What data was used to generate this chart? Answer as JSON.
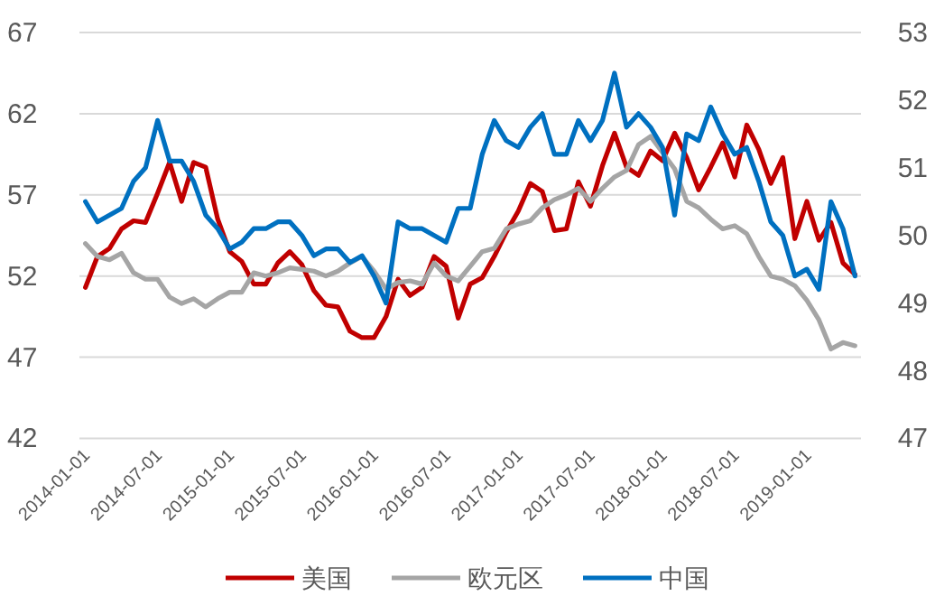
{
  "chart_data": {
    "type": "line",
    "categories": [
      "2014-01-01",
      null,
      null,
      null,
      null,
      null,
      "2014-07-01",
      null,
      null,
      null,
      null,
      null,
      "2015-01-01",
      null,
      null,
      null,
      null,
      null,
      "2015-07-01",
      null,
      null,
      null,
      null,
      null,
      "2016-01-01",
      null,
      null,
      null,
      null,
      null,
      "2016-07-01",
      null,
      null,
      null,
      null,
      null,
      "2017-01-01",
      null,
      null,
      null,
      null,
      null,
      "2017-07-01",
      null,
      null,
      null,
      null,
      null,
      "2018-01-01",
      null,
      null,
      null,
      null,
      null,
      "2018-07-01",
      null,
      null,
      null,
      null,
      null,
      "2019-01-01",
      null,
      null,
      null,
      null
    ],
    "series": [
      {
        "name": "美国",
        "color": "#c00000",
        "values": [
          51.3,
          53.2,
          53.7,
          54.9,
          55.4,
          55.3,
          57.1,
          59.0,
          56.6,
          59.0,
          58.7,
          55.5,
          53.5,
          52.9,
          51.5,
          51.5,
          52.8,
          53.5,
          52.7,
          51.1,
          50.2,
          50.1,
          48.6,
          48.2,
          48.2,
          49.5,
          51.8,
          50.8,
          51.3,
          53.2,
          52.6,
          49.4,
          51.5,
          51.9,
          53.2,
          54.7,
          56.0,
          57.7,
          57.2,
          54.8,
          54.9,
          57.8,
          56.3,
          58.8,
          60.8,
          58.7,
          58.2,
          59.7,
          59.1,
          60.8,
          59.3,
          57.3,
          58.7,
          60.2,
          58.1,
          61.3,
          59.8,
          57.7,
          59.3,
          54.3,
          56.6,
          54.2,
          55.3,
          52.8,
          52.1
        ]
      },
      {
        "name": "欧元区",
        "color": "#a5a5a5",
        "values": [
          54.0,
          53.2,
          53.0,
          53.4,
          52.2,
          51.8,
          51.8,
          50.7,
          50.3,
          50.6,
          50.1,
          50.6,
          51.0,
          51.0,
          52.2,
          52.0,
          52.2,
          52.5,
          52.4,
          52.3,
          52.0,
          52.3,
          52.8,
          53.2,
          52.3,
          51.2,
          51.6,
          51.7,
          51.5,
          52.8,
          52.0,
          51.7,
          52.6,
          53.5,
          53.7,
          54.9,
          55.2,
          55.4,
          56.2,
          56.7,
          57.0,
          57.4,
          56.6,
          57.4,
          58.1,
          58.5,
          60.1,
          60.6,
          59.6,
          58.6,
          56.6,
          56.2,
          55.5,
          54.9,
          55.1,
          54.6,
          53.2,
          52.0,
          51.8,
          51.4,
          50.5,
          49.3,
          47.5,
          47.9,
          47.7
        ]
      },
      {
        "name": "中国",
        "color": "#0070c0",
        "axis": "y2",
        "values": [
          50.5,
          50.2,
          50.3,
          50.4,
          50.8,
          51.0,
          51.7,
          51.1,
          51.1,
          50.8,
          50.3,
          50.1,
          49.8,
          49.9,
          50.1,
          50.1,
          50.2,
          50.2,
          50.0,
          49.7,
          49.8,
          49.8,
          49.6,
          49.7,
          49.4,
          49.0,
          50.2,
          50.1,
          50.1,
          50.0,
          49.9,
          50.4,
          50.4,
          51.2,
          51.7,
          51.4,
          51.3,
          51.6,
          51.8,
          51.2,
          51.2,
          51.7,
          51.4,
          51.7,
          52.4,
          51.6,
          51.8,
          51.6,
          51.3,
          50.3,
          51.5,
          51.4,
          51.9,
          51.5,
          51.2,
          51.3,
          50.8,
          50.2,
          50.0,
          49.4,
          49.5,
          49.2,
          50.5,
          50.1,
          49.4
        ]
      }
    ],
    "ylim": [
      42,
      67
    ],
    "yticks": [
      42,
      47,
      52,
      57,
      62,
      67
    ],
    "y2lim": [
      47,
      53
    ],
    "y2ticks": [
      47,
      48,
      49,
      50,
      51,
      52,
      53
    ],
    "grid": "y",
    "legend": "bottom"
  }
}
